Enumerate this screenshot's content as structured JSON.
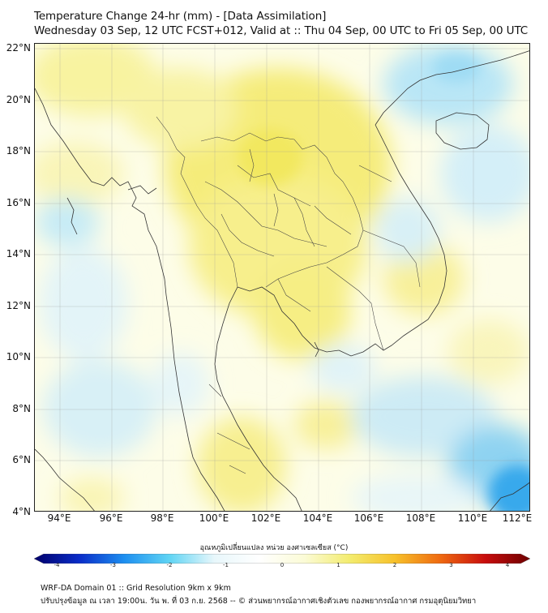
{
  "title": {
    "line1": "Temperature Change 24-hr (mm) - [Data Assimilation]",
    "line2": "Wednesday 03 Sep, 12 UTC FCST+012, Valid at :: Thu 04 Sep, 00 UTC to Fri 05 Sep, 00 UTC"
  },
  "map": {
    "lat_labels": [
      "22°N",
      "20°N",
      "18°N",
      "16°N",
      "14°N",
      "12°N",
      "10°N",
      "8°N",
      "6°N",
      "4°N"
    ],
    "lon_labels": [
      "94°E",
      "96°E",
      "98°E",
      "100°E",
      "102°E",
      "104°E",
      "106°E",
      "108°E",
      "110°E",
      "112°E"
    ],
    "extent": {
      "lon_min": 93,
      "lon_max": 112.2,
      "lat_min": 4,
      "lat_max": 22.2
    }
  },
  "colorbar": {
    "title": "อุณหภูมิเปลี่ยนแปลง หน่วย องศาเซลเซียส (°C)",
    "min": -4,
    "max": 4,
    "ticks": [
      "-4",
      "-3",
      "-2",
      "-1",
      "0",
      "1",
      "2",
      "3",
      "4"
    ],
    "colors": [
      "#00006a",
      "#0a2cc8",
      "#1d8ff0",
      "#5fd4f4",
      "#e8f7fb",
      "#ffffff",
      "#fbfbd6",
      "#f3ec6e",
      "#f7c12a",
      "#ef6a10",
      "#c80d0d",
      "#6e0000"
    ]
  },
  "footer": {
    "line1": "WRF-DA Domain 01 :: Grid Resolution 9km x 9km",
    "line2": "ปรับปรุงข้อมูล ณ เวลา 19:00น. วัน พ. ที่ 03 ก.ย. 2568 -- © ส่วนพยากรณ์อากาศเชิงตัวเลข กองพยากรณ์อากาศ กรมอุตุนิยมวิทยา"
  }
}
